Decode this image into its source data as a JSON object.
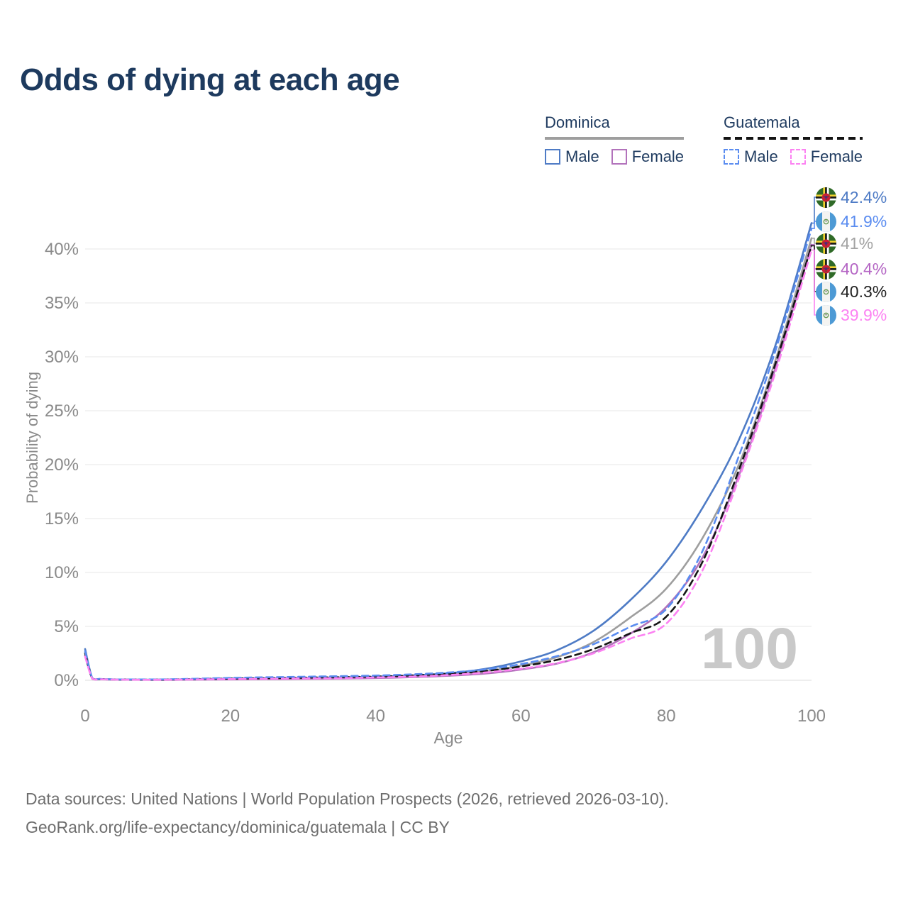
{
  "title": "Odds of dying at each age",
  "legend": {
    "groups": [
      {
        "label": "Dominica",
        "line_style": "solid",
        "line_color": "#9e9e9e",
        "items": [
          {
            "label": "Male",
            "color": "#4e7bc5",
            "style": "solid"
          },
          {
            "label": "Female",
            "color": "#b272bb",
            "style": "solid"
          }
        ]
      },
      {
        "label": "Guatemala",
        "line_style": "dashed",
        "line_color": "#141414",
        "items": [
          {
            "label": "Male",
            "color": "#5a8cf0",
            "style": "dashed"
          },
          {
            "label": "Female",
            "color": "#fc82f2",
            "style": "dashed"
          }
        ]
      }
    ]
  },
  "chart_data": {
    "type": "line",
    "title": "Odds of dying at each age",
    "xlabel": "Age",
    "ylabel": "Probability of dying",
    "xlim": [
      0,
      100
    ],
    "ylim": [
      0,
      45
    ],
    "grid": "horizontal",
    "x_ticks": [
      0,
      20,
      40,
      60,
      80,
      100
    ],
    "y_ticks": [
      0,
      5,
      10,
      15,
      20,
      25,
      30,
      35,
      40
    ],
    "y_tick_suffix": "%",
    "x": [
      0,
      1,
      2,
      3,
      5,
      10,
      15,
      20,
      25,
      30,
      35,
      40,
      45,
      50,
      55,
      60,
      65,
      70,
      75,
      80,
      85,
      90,
      95,
      100
    ],
    "series": [
      {
        "id": "dominica-both",
        "name": "Dominica",
        "color": "#9e9e9e",
        "dash": false,
        "end_label": "41%",
        "values": [
          2.6,
          0.15,
          0.1,
          0.08,
          0.06,
          0.05,
          0.08,
          0.12,
          0.14,
          0.17,
          0.21,
          0.27,
          0.37,
          0.53,
          0.83,
          1.35,
          2.15,
          3.55,
          5.8,
          8.5,
          13.2,
          20.0,
          29.6,
          41.0
        ]
      },
      {
        "id": "dominica-male",
        "name": "Dominica Male",
        "color": "#4e7bc5",
        "dash": false,
        "end_label": "42.4%",
        "values": [
          2.9,
          0.18,
          0.12,
          0.09,
          0.07,
          0.06,
          0.1,
          0.15,
          0.18,
          0.21,
          0.26,
          0.33,
          0.45,
          0.65,
          1.05,
          1.75,
          2.8,
          4.6,
          7.4,
          11.0,
          16.0,
          22.3,
          31.0,
          42.4
        ]
      },
      {
        "id": "dominica-female",
        "name": "Dominica Female",
        "color": "#b272bb",
        "dash": false,
        "end_label": "40.4%",
        "values": [
          2.3,
          0.13,
          0.09,
          0.07,
          0.05,
          0.04,
          0.06,
          0.08,
          0.1,
          0.13,
          0.16,
          0.21,
          0.29,
          0.42,
          0.62,
          1.0,
          1.55,
          2.6,
          4.3,
          6.8,
          11.4,
          19.0,
          28.9,
          40.4
        ]
      },
      {
        "id": "guatemala-both",
        "name": "Guatemala",
        "color": "#141414",
        "dash": true,
        "end_label": "40.3%",
        "values": [
          2.5,
          0.17,
          0.11,
          0.09,
          0.07,
          0.06,
          0.11,
          0.16,
          0.2,
          0.24,
          0.29,
          0.35,
          0.45,
          0.6,
          0.86,
          1.28,
          1.9,
          2.9,
          4.35,
          5.9,
          11.0,
          19.5,
          29.3,
          40.3
        ]
      },
      {
        "id": "guatemala-male",
        "name": "Guatemala Male",
        "color": "#5a8cf0",
        "dash": true,
        "end_label": "41.9%",
        "values": [
          2.7,
          0.2,
          0.13,
          0.1,
          0.08,
          0.08,
          0.14,
          0.22,
          0.28,
          0.33,
          0.38,
          0.44,
          0.55,
          0.72,
          1.0,
          1.5,
          2.25,
          3.35,
          4.95,
          6.6,
          12.0,
          20.8,
          30.5,
          41.9
        ]
      },
      {
        "id": "guatemala-female",
        "name": "Guatemala Female",
        "color": "#fc82f2",
        "dash": true,
        "end_label": "39.9%",
        "values": [
          2.2,
          0.15,
          0.1,
          0.08,
          0.06,
          0.05,
          0.08,
          0.11,
          0.14,
          0.17,
          0.2,
          0.26,
          0.34,
          0.49,
          0.72,
          1.08,
          1.6,
          2.5,
          3.85,
          5.25,
          10.2,
          18.7,
          28.5,
          39.9
        ]
      }
    ]
  },
  "age_marker": "100",
  "end_labels": [
    {
      "series": "dominica-male",
      "flag": "dominica",
      "value": "42.4%",
      "color": "#4e7bc5"
    },
    {
      "series": "guatemala-male",
      "flag": "guatemala",
      "value": "41.9%",
      "color": "#5a8cf0"
    },
    {
      "series": "dominica-both",
      "flag": "dominica",
      "value": "41%",
      "color": "#a3a3a3"
    },
    {
      "series": "dominica-female",
      "flag": "dominica",
      "value": "40.4%",
      "color": "#b465c4"
    },
    {
      "series": "guatemala-both",
      "flag": "guatemala",
      "value": "40.3%",
      "color": "#212121"
    },
    {
      "series": "guatemala-female",
      "flag": "guatemala",
      "value": "39.9%",
      "color": "#fc82f2"
    }
  ],
  "footer": {
    "line1": "Data sources: United Nations | World Population Prospects (2026, retrieved 2026-03-10).",
    "line2": "GeoRank.org/life-expectancy/dominica/guatemala | CC BY"
  }
}
